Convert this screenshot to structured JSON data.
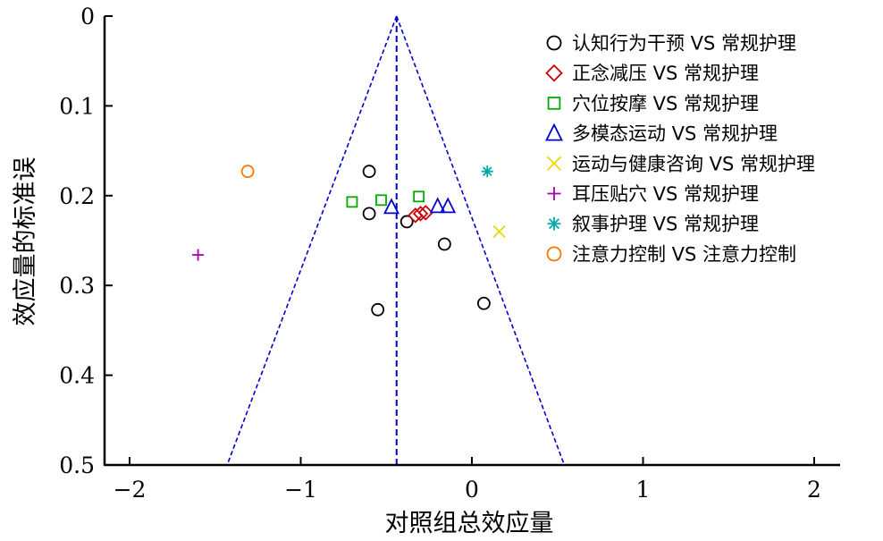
{
  "chart_data": {
    "type": "scatter",
    "subtype": "funnel-plot",
    "title": "",
    "xlabel": "对照组总效应量",
    "ylabel": "效应量的标准误",
    "xlim": [
      -2.15,
      2.15
    ],
    "ylim": [
      0,
      0.5
    ],
    "y_inverted": true,
    "x_ticks": [
      "−2",
      "−1",
      "0",
      "1",
      "2"
    ],
    "x_tick_values": [
      -2,
      -1,
      0,
      1,
      2
    ],
    "y_ticks": [
      "0",
      "0.1",
      "0.2",
      "0.3",
      "0.4",
      "0.5"
    ],
    "y_tick_values": [
      0,
      0.1,
      0.2,
      0.3,
      0.4,
      0.5
    ],
    "grid": false,
    "legend_position": "top-right",
    "reference": {
      "pooled_effect": -0.44,
      "funnel_bottom_se": 0.5,
      "funnel_left_x": -1.43,
      "funnel_right_x": 0.54,
      "color": "#0000cc"
    },
    "series": [
      {
        "name": "认知行为干预 VS 常规护理",
        "marker": "circle",
        "color": "#000000",
        "points": [
          [
            -0.6,
            0.173
          ],
          [
            -0.6,
            0.22
          ],
          [
            -0.38,
            0.229
          ],
          [
            -0.16,
            0.254
          ],
          [
            -0.55,
            0.327
          ],
          [
            0.07,
            0.32
          ]
        ]
      },
      {
        "name": "正念减压 VS 常规护理",
        "marker": "diamond",
        "color": "#cc0000",
        "points": [
          [
            -0.33,
            0.222
          ],
          [
            -0.3,
            0.22
          ],
          [
            -0.27,
            0.219
          ]
        ]
      },
      {
        "name": "穴位按摩 VS 常规护理",
        "marker": "square",
        "color": "#00aa00",
        "points": [
          [
            -0.7,
            0.207
          ],
          [
            -0.53,
            0.205
          ],
          [
            -0.31,
            0.201
          ]
        ]
      },
      {
        "name": "多模态运动 VS 常规护理",
        "marker": "triangle",
        "color": "#0000cc",
        "points": [
          [
            -0.47,
            0.213
          ],
          [
            -0.2,
            0.212
          ],
          [
            -0.14,
            0.212
          ]
        ]
      },
      {
        "name": "运动与健康咨询 VS 常规护理",
        "marker": "x",
        "color": "#e8d800",
        "points": [
          [
            0.16,
            0.24
          ]
        ]
      },
      {
        "name": "耳压贴穴 VS 常规护理",
        "marker": "plus",
        "color": "#aa00aa",
        "points": [
          [
            -1.6,
            0.266
          ]
        ]
      },
      {
        "name": "叙事护理 VS 常规护理",
        "marker": "asterisk",
        "color": "#00aaaa",
        "points": [
          [
            0.09,
            0.173
          ]
        ]
      },
      {
        "name": "注意力控制 VS 注意力控制",
        "marker": "circle",
        "color": "#ff7700",
        "points": [
          [
            -1.31,
            0.173
          ]
        ]
      }
    ]
  }
}
